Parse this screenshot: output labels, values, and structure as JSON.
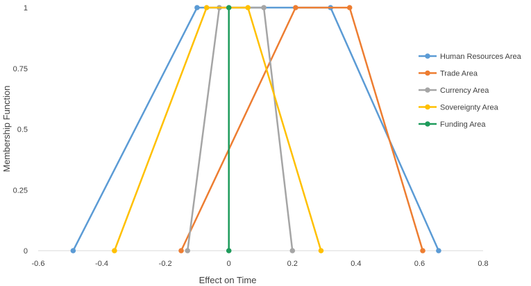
{
  "chart_data": {
    "type": "line",
    "title": "",
    "xlabel": "Effect on Time",
    "ylabel": "Membership Function",
    "xlim": [
      -0.6,
      0.8
    ],
    "ylim": [
      0,
      1
    ],
    "x_ticks": [
      -0.6,
      -0.4,
      -0.2,
      0,
      0.2,
      0.4,
      0.6,
      0.8
    ],
    "x_tick_labels": [
      "-0.6",
      "-0.4",
      "-0.2",
      "0",
      "0.2",
      "0.4",
      "0.6",
      "0.8"
    ],
    "y_ticks": [
      0,
      0.25,
      0.5,
      0.75,
      1
    ],
    "y_tick_labels": [
      "0",
      "0.25",
      "0.5",
      "0.75",
      "1"
    ],
    "grid": false,
    "legend_position": "right",
    "series": [
      {
        "name": "Human Resources Area",
        "color": "#5B9BD5",
        "points": [
          [
            -0.49,
            0
          ],
          [
            -0.1,
            1
          ],
          [
            0.32,
            1
          ],
          [
            0.66,
            0
          ]
        ]
      },
      {
        "name": "Trade Area",
        "color": "#ED7D31",
        "points": [
          [
            -0.15,
            0
          ],
          [
            0.21,
            1
          ],
          [
            0.38,
            1
          ],
          [
            0.61,
            0
          ]
        ]
      },
      {
        "name": "Currency Area",
        "color": "#A5A5A5",
        "points": [
          [
            -0.13,
            0
          ],
          [
            -0.03,
            1
          ],
          [
            0.11,
            1
          ],
          [
            0.2,
            0
          ]
        ]
      },
      {
        "name": "Sovereignty Area",
        "color": "#FFC000",
        "points": [
          [
            -0.36,
            0
          ],
          [
            -0.07,
            1
          ],
          [
            0.06,
            1
          ],
          [
            0.29,
            0
          ]
        ]
      },
      {
        "name": "Funding Area",
        "color": "#1E9B5B",
        "points": [
          [
            0,
            0
          ],
          [
            0,
            1
          ]
        ]
      }
    ]
  }
}
